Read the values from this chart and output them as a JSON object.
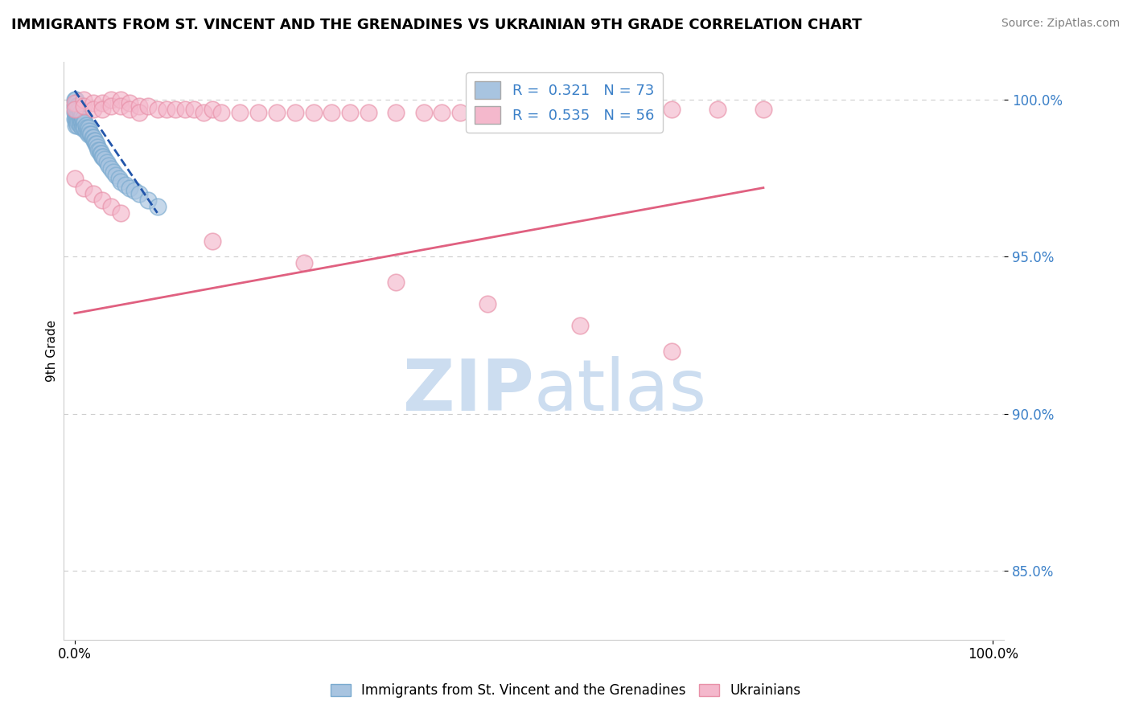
{
  "title": "IMMIGRANTS FROM ST. VINCENT AND THE GRENADINES VS UKRAINIAN 9TH GRADE CORRELATION CHART",
  "source": "Source: ZipAtlas.com",
  "ylabel": "9th Grade",
  "R_blue": 0.321,
  "N_blue": 73,
  "R_pink": 0.535,
  "N_pink": 56,
  "blue_color": "#a8c4e0",
  "blue_edge_color": "#7aaacf",
  "blue_line_color": "#2255aa",
  "pink_color": "#f4b8cc",
  "pink_edge_color": "#e890a8",
  "pink_line_color": "#e06080",
  "legend_color": "#3b80c8",
  "ytick_color": "#3b80c8",
  "ylim_min": 0.828,
  "ylim_max": 1.012,
  "xlim_min": -0.012,
  "xlim_max": 1.012,
  "yticks": [
    0.85,
    0.9,
    0.95,
    1.0
  ],
  "ytick_labels": [
    "85.0%",
    "90.0%",
    "95.0%",
    "100.0%"
  ],
  "background_color": "#ffffff",
  "grid_color": "#cccccc",
  "watermark_zip": "ZIP",
  "watermark_atlas": "atlas",
  "watermark_color": "#ccddf0",
  "blue_x": [
    0.0,
    0.0,
    0.0,
    0.0,
    0.001,
    0.001,
    0.001,
    0.001,
    0.001,
    0.002,
    0.002,
    0.002,
    0.002,
    0.003,
    0.003,
    0.003,
    0.003,
    0.004,
    0.004,
    0.004,
    0.005,
    0.005,
    0.005,
    0.006,
    0.006,
    0.006,
    0.007,
    0.007,
    0.008,
    0.008,
    0.008,
    0.009,
    0.009,
    0.01,
    0.01,
    0.011,
    0.011,
    0.012,
    0.012,
    0.013,
    0.014,
    0.015,
    0.015,
    0.016,
    0.017,
    0.018,
    0.019,
    0.02,
    0.021,
    0.022,
    0.023,
    0.024,
    0.025,
    0.026,
    0.027,
    0.028,
    0.029,
    0.03,
    0.031,
    0.033,
    0.035,
    0.037,
    0.04,
    0.042,
    0.045,
    0.048,
    0.05,
    0.055,
    0.06,
    0.065,
    0.07,
    0.08,
    0.09
  ],
  "blue_y": [
    1.0,
    0.998,
    0.996,
    0.994,
    1.0,
    0.998,
    0.996,
    0.994,
    0.992,
    0.999,
    0.997,
    0.995,
    0.993,
    0.998,
    0.996,
    0.994,
    0.992,
    0.997,
    0.995,
    0.993,
    0.997,
    0.995,
    0.993,
    0.996,
    0.994,
    0.992,
    0.995,
    0.993,
    0.995,
    0.993,
    0.991,
    0.994,
    0.992,
    0.993,
    0.991,
    0.993,
    0.991,
    0.992,
    0.99,
    0.991,
    0.99,
    0.991,
    0.989,
    0.99,
    0.989,
    0.989,
    0.988,
    0.988,
    0.987,
    0.987,
    0.986,
    0.986,
    0.985,
    0.984,
    0.984,
    0.983,
    0.983,
    0.982,
    0.982,
    0.981,
    0.98,
    0.979,
    0.978,
    0.977,
    0.976,
    0.975,
    0.974,
    0.973,
    0.972,
    0.971,
    0.97,
    0.968,
    0.966
  ],
  "pink_x": [
    0.0,
    0.0,
    0.01,
    0.01,
    0.02,
    0.02,
    0.03,
    0.03,
    0.04,
    0.04,
    0.05,
    0.05,
    0.06,
    0.06,
    0.07,
    0.07,
    0.08,
    0.09,
    0.1,
    0.11,
    0.12,
    0.13,
    0.14,
    0.15,
    0.16,
    0.18,
    0.2,
    0.22,
    0.24,
    0.26,
    0.28,
    0.3,
    0.32,
    0.35,
    0.38,
    0.4,
    0.42,
    0.45,
    0.5,
    0.55,
    0.6,
    0.65,
    0.7,
    0.75,
    0.0,
    0.01,
    0.02,
    0.03,
    0.04,
    0.05,
    0.15,
    0.25,
    0.35,
    0.45,
    0.55,
    0.65
  ],
  "pink_y": [
    0.999,
    0.997,
    1.0,
    0.998,
    0.999,
    0.997,
    0.999,
    0.997,
    1.0,
    0.998,
    1.0,
    0.998,
    0.999,
    0.997,
    0.998,
    0.996,
    0.998,
    0.997,
    0.997,
    0.997,
    0.997,
    0.997,
    0.996,
    0.997,
    0.996,
    0.996,
    0.996,
    0.996,
    0.996,
    0.996,
    0.996,
    0.996,
    0.996,
    0.996,
    0.996,
    0.996,
    0.996,
    0.997,
    0.997,
    0.997,
    0.997,
    0.997,
    0.997,
    0.997,
    0.975,
    0.972,
    0.97,
    0.968,
    0.966,
    0.964,
    0.955,
    0.948,
    0.942,
    0.935,
    0.928,
    0.92
  ],
  "title_fontsize": 13,
  "source_fontsize": 10,
  "legend_fontsize": 13,
  "bottom_legend_label_blue": "Immigrants from St. Vincent and the Grenadines",
  "bottom_legend_label_pink": "Ukrainians"
}
